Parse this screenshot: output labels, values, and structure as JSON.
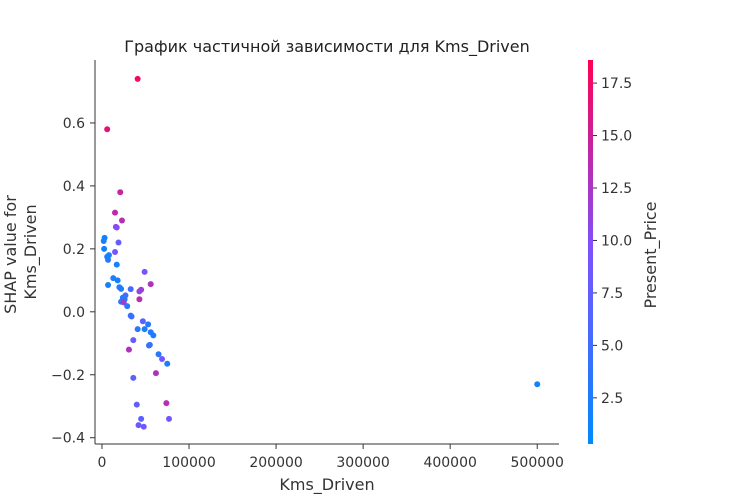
{
  "chart_data": {
    "type": "scatter",
    "title": "График частичной зависимости для Kms_Driven",
    "xlabel": "Kms_Driven",
    "ylabel_lines": [
      "SHAP value for",
      "Kms_Driven"
    ],
    "xlim": [
      -8000,
      525000
    ],
    "ylim": [
      -0.42,
      0.8
    ],
    "xticks": [
      0,
      100000,
      200000,
      300000,
      400000,
      500000
    ],
    "yticks": [
      -0.4,
      -0.2,
      0.0,
      0.2,
      0.4,
      0.6
    ],
    "colorbar": {
      "label": "Present_Price",
      "range": [
        0.3,
        18.6
      ],
      "ticks": [
        2.5,
        5.0,
        7.5,
        10.0,
        12.5,
        15.0,
        17.5
      ],
      "color_low": "#008afb",
      "color_mid": "#7c52ff",
      "color_high": "#ff0052"
    },
    "grid": false,
    "points": [
      {
        "x": 41000,
        "y": 0.74,
        "c": 17.5
      },
      {
        "x": 6000,
        "y": 0.58,
        "c": 16.5
      },
      {
        "x": 21000,
        "y": 0.38,
        "c": 14.5
      },
      {
        "x": 15000,
        "y": 0.315,
        "c": 14.0
      },
      {
        "x": 23000,
        "y": 0.29,
        "c": 13.5
      },
      {
        "x": 16000,
        "y": 0.27,
        "c": 11.0
      },
      {
        "x": 17000,
        "y": 0.268,
        "c": 10.0
      },
      {
        "x": 3000,
        "y": 0.235,
        "c": 1.5
      },
      {
        "x": 2000,
        "y": 0.225,
        "c": 2.0
      },
      {
        "x": 19000,
        "y": 0.22,
        "c": 8.0
      },
      {
        "x": 2500,
        "y": 0.2,
        "c": 1.8
      },
      {
        "x": 15000,
        "y": 0.19,
        "c": 9.0
      },
      {
        "x": 8000,
        "y": 0.18,
        "c": 2.5
      },
      {
        "x": 6000,
        "y": 0.175,
        "c": 2.0
      },
      {
        "x": 7000,
        "y": 0.165,
        "c": 3.0
      },
      {
        "x": 17000,
        "y": 0.15,
        "c": 2.0
      },
      {
        "x": 49000,
        "y": 0.127,
        "c": 9.5
      },
      {
        "x": 13000,
        "y": 0.107,
        "c": 2.5
      },
      {
        "x": 18000,
        "y": 0.1,
        "c": 2.0
      },
      {
        "x": 56000,
        "y": 0.088,
        "c": 13.0
      },
      {
        "x": 7000,
        "y": 0.085,
        "c": 2.0
      },
      {
        "x": 20000,
        "y": 0.078,
        "c": 3.0
      },
      {
        "x": 22000,
        "y": 0.073,
        "c": 2.5
      },
      {
        "x": 33000,
        "y": 0.072,
        "c": 5.0
      },
      {
        "x": 45000,
        "y": 0.07,
        "c": 12.0
      },
      {
        "x": 43000,
        "y": 0.065,
        "c": 11.0
      },
      {
        "x": 27000,
        "y": 0.052,
        "c": 6.0
      },
      {
        "x": 24000,
        "y": 0.045,
        "c": 3.0
      },
      {
        "x": 26000,
        "y": 0.04,
        "c": 2.5
      },
      {
        "x": 43000,
        "y": 0.04,
        "c": 13.5
      },
      {
        "x": 22000,
        "y": 0.032,
        "c": 4.0
      },
      {
        "x": 25000,
        "y": 0.03,
        "c": 12.0
      },
      {
        "x": 29000,
        "y": 0.018,
        "c": 3.0
      },
      {
        "x": 33000,
        "y": -0.012,
        "c": 4.0
      },
      {
        "x": 34000,
        "y": -0.015,
        "c": 5.0
      },
      {
        "x": 47000,
        "y": -0.03,
        "c": 7.0
      },
      {
        "x": 53000,
        "y": -0.04,
        "c": 3.0
      },
      {
        "x": 41000,
        "y": -0.055,
        "c": 3.5
      },
      {
        "x": 49000,
        "y": -0.055,
        "c": 2.5
      },
      {
        "x": 56000,
        "y": -0.065,
        "c": 3.0
      },
      {
        "x": 59000,
        "y": -0.075,
        "c": 2.0
      },
      {
        "x": 36000,
        "y": -0.09,
        "c": 8.0
      },
      {
        "x": 54000,
        "y": -0.107,
        "c": 4.0
      },
      {
        "x": 55000,
        "y": -0.105,
        "c": 4.5
      },
      {
        "x": 31000,
        "y": -0.12,
        "c": 13.0
      },
      {
        "x": 65000,
        "y": -0.135,
        "c": 3.0
      },
      {
        "x": 69000,
        "y": -0.15,
        "c": 9.0
      },
      {
        "x": 75000,
        "y": -0.165,
        "c": 2.5
      },
      {
        "x": 62000,
        "y": -0.195,
        "c": 13.0
      },
      {
        "x": 36000,
        "y": -0.21,
        "c": 7.0
      },
      {
        "x": 500000,
        "y": -0.23,
        "c": 1.8
      },
      {
        "x": 74000,
        "y": -0.29,
        "c": 13.5
      },
      {
        "x": 40000,
        "y": -0.295,
        "c": 7.5
      },
      {
        "x": 45000,
        "y": -0.34,
        "c": 7.0
      },
      {
        "x": 77000,
        "y": -0.34,
        "c": 8.5
      },
      {
        "x": 42000,
        "y": -0.36,
        "c": 8.0
      },
      {
        "x": 48000,
        "y": -0.365,
        "c": 9.0
      }
    ]
  }
}
